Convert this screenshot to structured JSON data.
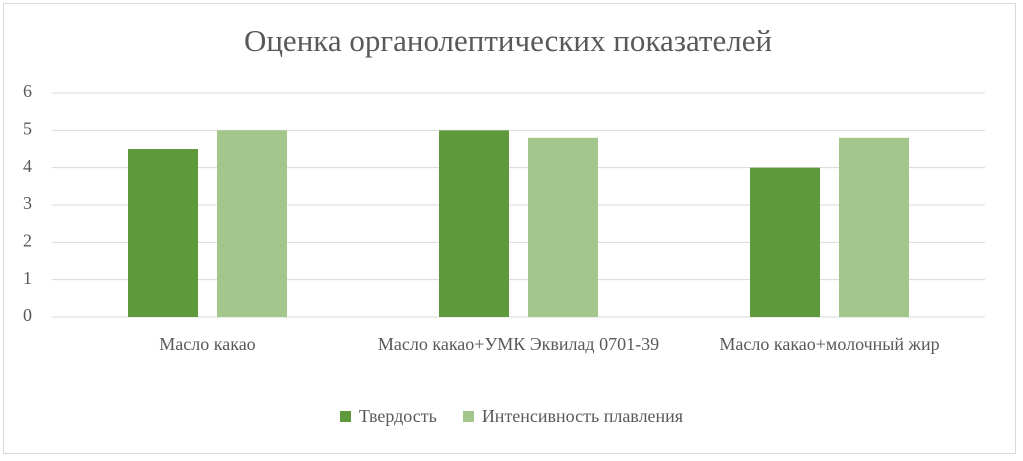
{
  "chart_data": {
    "type": "bar",
    "title": "Оценка органолептических показателей",
    "categories": [
      "Масло какао",
      "Масло какао+УМК Эквилад 0701-39",
      "Масло какао+молочный жир"
    ],
    "series": [
      {
        "name": "Твердость",
        "color": "#5e9a3c",
        "values": [
          4.5,
          5,
          4
        ]
      },
      {
        "name": "Интенсивность плавления",
        "color": "#a3c68d",
        "values": [
          5,
          4.8,
          4.8
        ]
      }
    ],
    "ylim": [
      0,
      6
    ],
    "yticks": [
      0,
      1,
      2,
      3,
      4,
      5,
      6
    ],
    "grid": true,
    "legend": "bottom"
  }
}
